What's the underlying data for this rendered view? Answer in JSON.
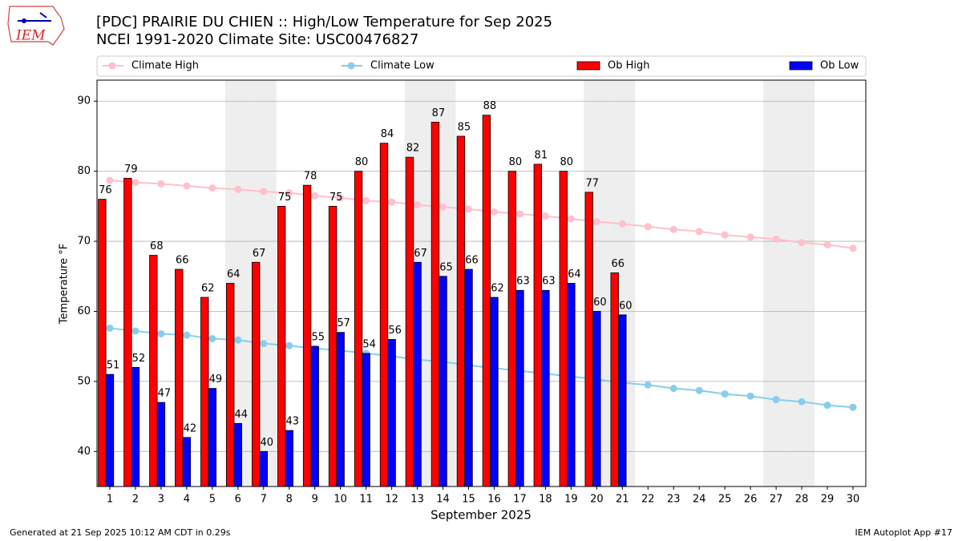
{
  "chart_data": {
    "type": "bar",
    "title": "[PDC] PRAIRIE DU CHIEN :: High/Low Temperature for Sep 2025",
    "subtitle": "NCEI 1991-2020 Climate Site: USC00476827",
    "xlabel": "September 2025",
    "ylabel": "Temperature °F",
    "logo": "IEM",
    "footer_left": "Generated at 21 Sep 2025 10:12 AM CDT in 0.29s",
    "footer_right": "IEM Autoplot App #17",
    "legend": "top",
    "grid": true,
    "x": [
      1,
      2,
      3,
      4,
      5,
      6,
      7,
      8,
      9,
      10,
      11,
      12,
      13,
      14,
      15,
      16,
      17,
      18,
      19,
      20,
      21,
      22,
      23,
      24,
      25,
      26,
      27,
      28,
      29,
      30
    ],
    "xlim": [
      0.5,
      30.5
    ],
    "xticks": [
      1,
      2,
      3,
      4,
      5,
      6,
      7,
      8,
      9,
      10,
      11,
      12,
      13,
      14,
      15,
      16,
      17,
      18,
      19,
      20,
      21,
      22,
      23,
      24,
      25,
      26,
      27,
      28,
      29,
      30
    ],
    "ylim": [
      35,
      93
    ],
    "yticks": [
      40,
      50,
      60,
      70,
      80,
      90
    ],
    "shaded_days": [
      6,
      7,
      13,
      14,
      20,
      21,
      27,
      28
    ],
    "shade_color": "#eeeeee",
    "series": [
      {
        "name": "Climate High",
        "type": "line",
        "color": "#ffc0cb",
        "values": [
          78.7,
          78.4,
          78.2,
          77.9,
          77.6,
          77.4,
          77.1,
          76.9,
          76.5,
          76.2,
          75.8,
          75.6,
          75.2,
          74.9,
          74.6,
          74.2,
          73.9,
          73.6,
          73.2,
          72.8,
          72.5,
          72.1,
          71.7,
          71.4,
          70.9,
          70.6,
          70.3,
          69.8,
          69.5,
          69.0
        ]
      },
      {
        "name": "Climate Low",
        "type": "line",
        "color": "#87ceeb",
        "values": [
          57.6,
          57.2,
          56.8,
          56.6,
          56.1,
          55.9,
          55.4,
          55.1,
          54.7,
          54.4,
          54.0,
          53.6,
          53.1,
          52.8,
          52.3,
          51.9,
          51.5,
          51.1,
          50.7,
          50.3,
          49.8,
          49.5,
          49.0,
          48.7,
          48.2,
          47.9,
          47.4,
          47.1,
          46.6,
          46.3
        ]
      },
      {
        "name": "Ob High",
        "type": "bar",
        "color": "#ff0000",
        "values": [
          76,
          79,
          68,
          66,
          62,
          64,
          67,
          75,
          78,
          75,
          80,
          84,
          82,
          87,
          85,
          88,
          80,
          81,
          80,
          77,
          65.5,
          null,
          null,
          null,
          null,
          null,
          null,
          null,
          null,
          null
        ],
        "value_labels": [
          "76",
          "79",
          "68",
          "66",
          "62",
          "64",
          "67",
          "75",
          "78",
          "75",
          "80",
          "84",
          "82",
          "87",
          "85",
          "88",
          "80",
          "81",
          "80",
          "77",
          "66",
          null,
          null,
          null,
          null,
          null,
          null,
          null,
          null,
          null
        ]
      },
      {
        "name": "Ob Low",
        "type": "bar",
        "color": "#0000ff",
        "values": [
          51,
          52,
          47,
          42,
          49,
          44,
          40,
          43,
          55,
          57,
          54,
          56,
          67,
          65,
          66,
          62,
          63,
          63,
          64,
          60,
          59.5,
          null,
          null,
          null,
          null,
          null,
          null,
          null,
          null,
          null
        ],
        "value_labels": [
          "51",
          "52",
          "47",
          "42",
          "49",
          "44",
          "40",
          "43",
          "55",
          "57",
          "54",
          "56",
          "67",
          "65",
          "66",
          "62",
          "63",
          "63",
          "64",
          "60",
          "60",
          null,
          null,
          null,
          null,
          null,
          null,
          null,
          null,
          null
        ]
      }
    ]
  }
}
